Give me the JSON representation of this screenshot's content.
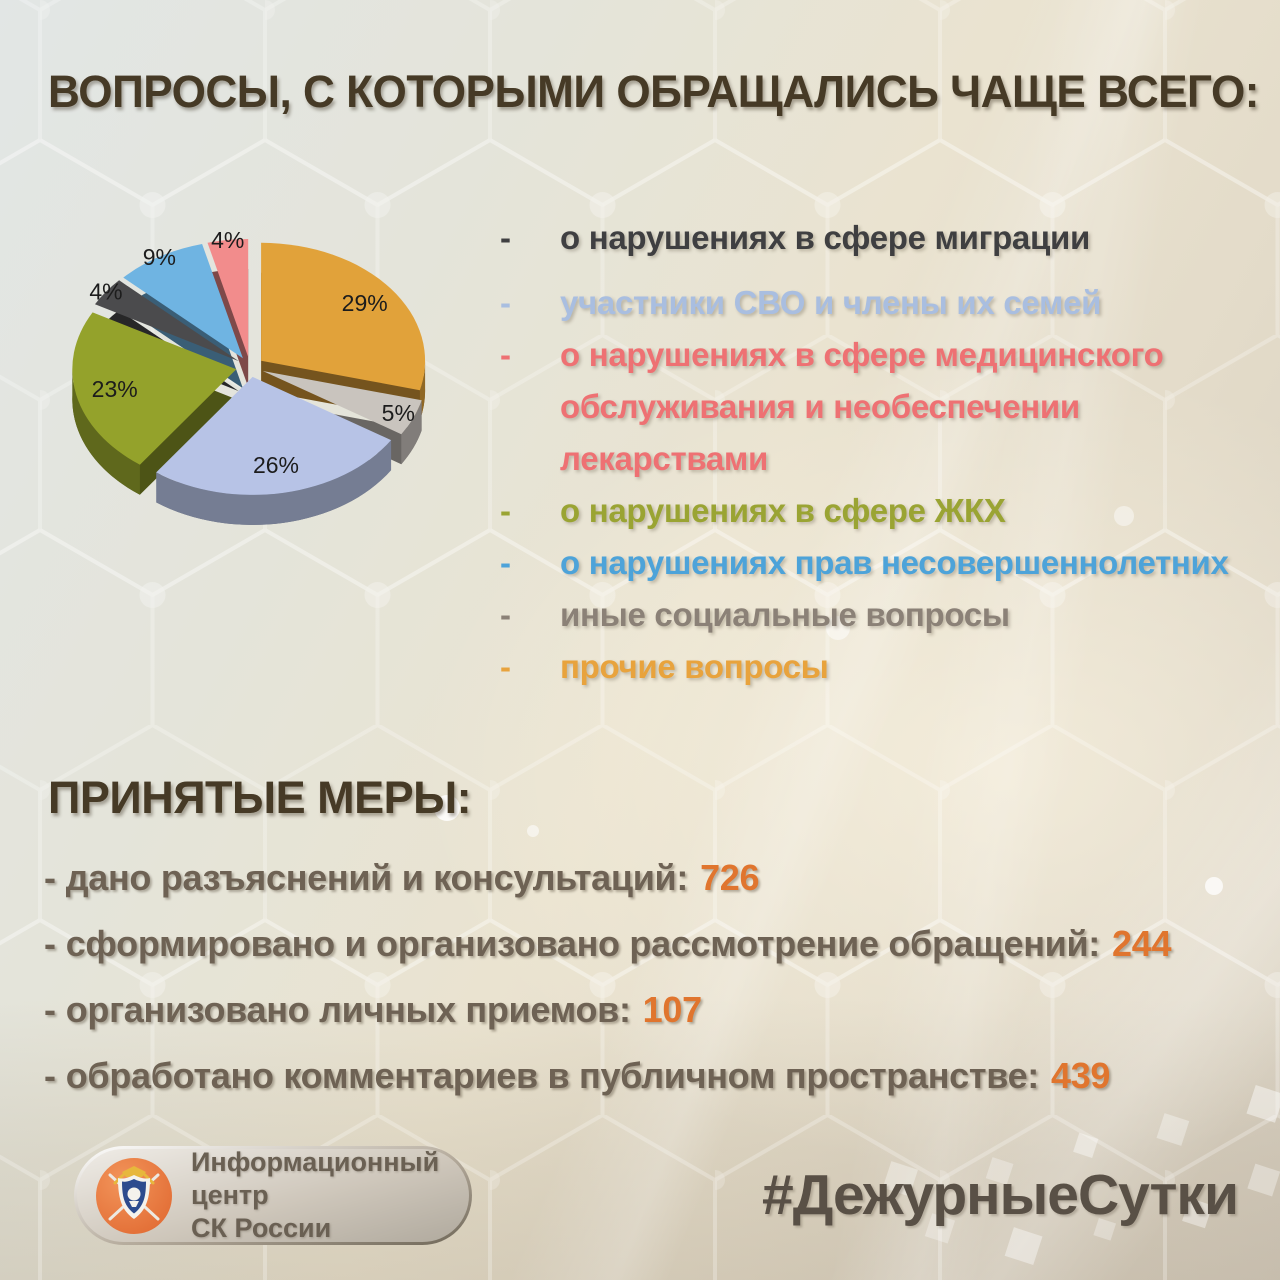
{
  "title": "ВОПРОСЫ, С КОТОРЫМИ ОБРАЩАЛИСЬ ЧАЩЕ ВСЕГО:",
  "chart_data": {
    "type": "pie",
    "style": "3d-exploded",
    "value_suffix": "%",
    "labels_shown_as": "percent-on-slice",
    "slices": [
      {
        "label": "прочие вопросы",
        "value": 29,
        "color": "#E1A23A"
      },
      {
        "label": "иные социальные вопросы",
        "value": 5,
        "color": "#C9C4BE"
      },
      {
        "label": "участники СВО и члены их семей",
        "value": 26,
        "color": "#B7C3E6"
      },
      {
        "label": "о нарушениях в сфере ЖКХ",
        "value": 23,
        "color": "#94A22B"
      },
      {
        "label": "о нарушениях в сфере миграции",
        "value": 4,
        "color": "#4B4B4D"
      },
      {
        "label": "о нарушениях прав несовершеннолетних",
        "value": 9,
        "color": "#6FB4E2"
      },
      {
        "label": "о нарушениях в сфере медицинского обслуживания и необеспечении лекарствами",
        "value": 4,
        "color": "#F28C8C"
      }
    ]
  },
  "legend": {
    "bullet": "-",
    "items": [
      {
        "text": "о нарушениях в сфере миграции",
        "color": "#3F3F41"
      },
      {
        "text": "участники СВО и члены их семей",
        "color": "#A9BEE0"
      },
      {
        "text": "о нарушениях в сфере медицинского\nобслуживания и необеспечении\nлекарствами",
        "color": "#EE7173"
      },
      {
        "text": "о нарушениях в сфере ЖКХ",
        "color": "#9AA433"
      },
      {
        "text": "о нарушениях прав несовершеннолетних",
        "color": "#4DA3D9"
      },
      {
        "text": "иные социальные вопросы",
        "color": "#8B8177"
      },
      {
        "text": "прочие вопросы",
        "color": "#E8A33D"
      }
    ]
  },
  "measures": {
    "title": "ПРИНЯТЫЕ МЕРЫ:",
    "bullet": "-",
    "accent_color": "#E0752E",
    "items": [
      {
        "label": "дано разъяснений и консультаций:",
        "value": "726"
      },
      {
        "label": "сформировано и организовано рассмотрение обращений:",
        "value": "244"
      },
      {
        "label": "организовано личных приемов:",
        "value": "107"
      },
      {
        "label": "обработано комментариев в публичном пространстве:",
        "value": "439"
      }
    ]
  },
  "footer": {
    "logo_line1": "Информационный центр",
    "logo_line2": "СК России",
    "hashtag": "#ДежурныеСутки"
  }
}
